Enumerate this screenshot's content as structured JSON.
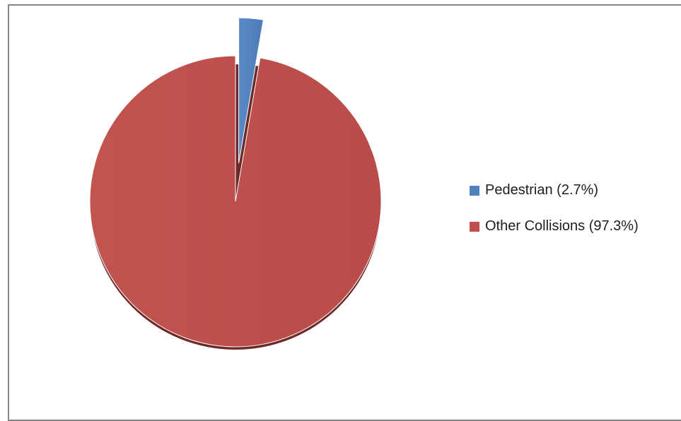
{
  "chart_data": {
    "type": "pie",
    "title": "",
    "exploded": "Pedestrian",
    "legend_position": "right",
    "series": [
      {
        "name": "Pedestrian",
        "label": "Pedestrian (2.7%)",
        "value": 2.7,
        "color": "#4F81BD"
      },
      {
        "name": "Other Collisions",
        "label": "Other Collisions (97.3%)",
        "value": 97.3,
        "color": "#C0504D"
      }
    ]
  }
}
